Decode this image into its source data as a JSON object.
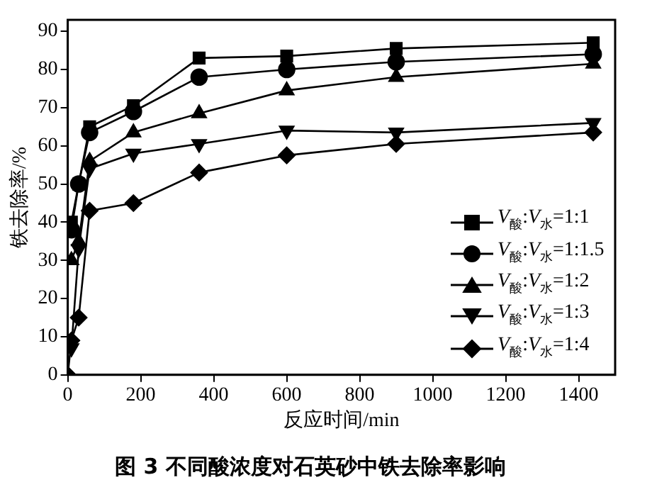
{
  "chart_data": {
    "type": "line",
    "title": "图 3 不同酸浓度对石英砂中铁去除率影响",
    "xlabel": "反应时间/min",
    "ylabel": "铁去除率/%",
    "xlim": [
      0,
      1500
    ],
    "xticks": [
      0,
      200,
      400,
      600,
      800,
      1000,
      1200,
      1400
    ],
    "ylim": [
      0,
      93
    ],
    "yticks": [
      0,
      10,
      20,
      30,
      40,
      50,
      60,
      70,
      80,
      90
    ],
    "legend": "bottom right",
    "grid": false,
    "line_style": "solid",
    "series": [
      {
        "name": "V$_{酸}$:V$_{水}$=1:1",
        "color": "#000000",
        "marker": "square",
        "x": [
          10,
          30,
          60,
          180,
          360,
          600,
          900,
          1440
        ],
        "values": [
          40,
          50,
          65,
          70.5,
          83,
          83.5,
          85.5,
          87
        ]
      },
      {
        "name": "V$_{酸}$:V$_{水}$=1:1.5",
        "color": "#000000",
        "marker": "circle",
        "x": [
          10,
          30,
          60,
          180,
          360,
          600,
          900,
          1440
        ],
        "values": [
          38,
          50,
          63.5,
          69,
          78,
          80,
          82,
          84
        ]
      },
      {
        "name": "V$_{酸}$:V$_{水}$=1:2",
        "color": "#000000",
        "marker": "triangle",
        "x": [
          10,
          30,
          60,
          180,
          360,
          600,
          900,
          1440
        ],
        "values": [
          30,
          35,
          56,
          63.5,
          68.5,
          74.5,
          78,
          81.5
        ]
      },
      {
        "name": "V$_{酸}$:V$_{水}$=1:3",
        "color": "#000000",
        "marker": "triangle-down",
        "x": [
          10,
          30,
          60,
          180,
          360,
          600,
          900,
          1440
        ],
        "values": [
          7,
          33,
          54,
          58,
          60.5,
          64,
          63.5,
          66
        ]
      },
      {
        "name": "V$_{酸}$:V$_{水}$=1:4",
        "color": "#000000",
        "marker": "diamond",
        "x": [
          0,
          10,
          30,
          60,
          180,
          360,
          600,
          900,
          1440
        ],
        "values": [
          0,
          9,
          15,
          43,
          45,
          53,
          57.5,
          60.5,
          63.5
        ]
      }
    ]
  }
}
